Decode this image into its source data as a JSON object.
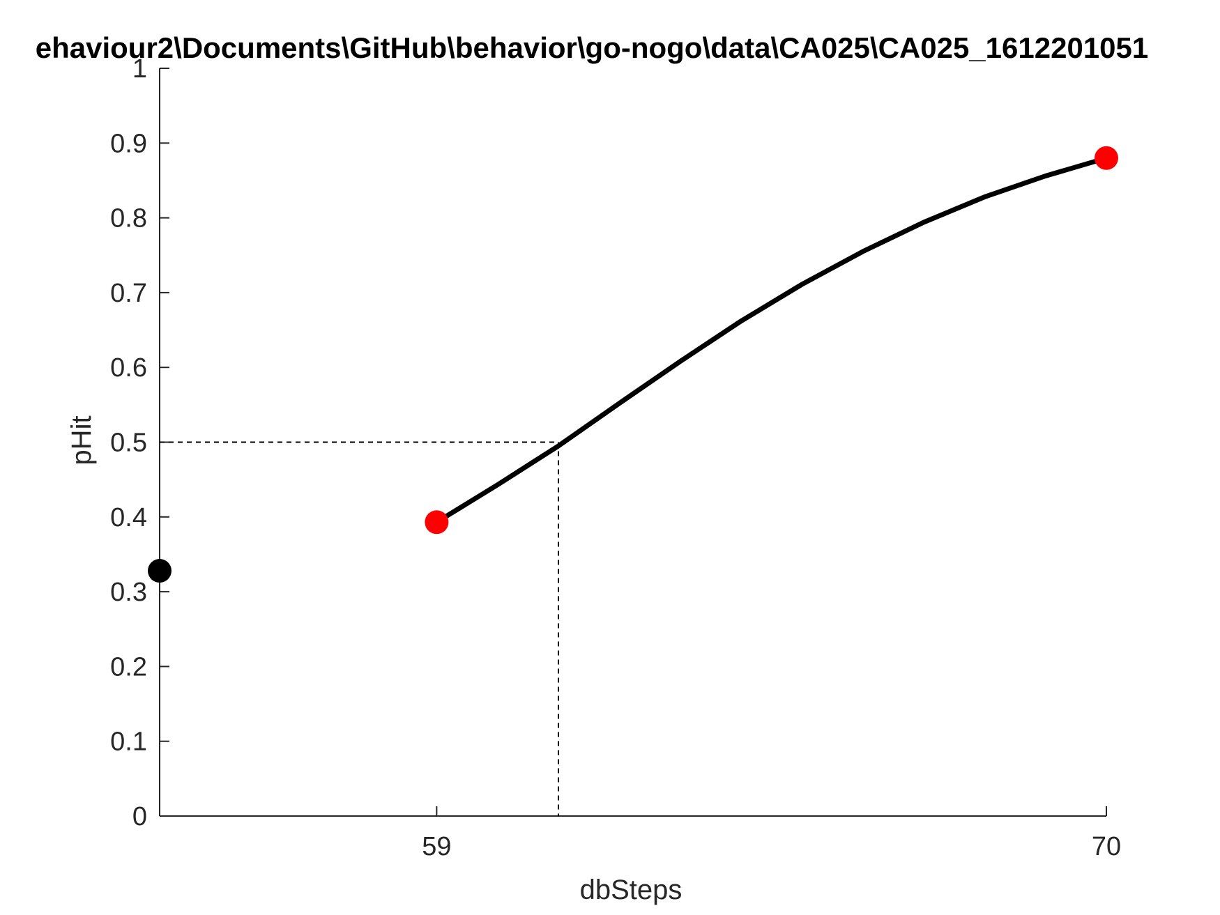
{
  "chart_data": {
    "type": "line",
    "title": "ehaviour2\\Documents\\GitHub\\behavior\\go-nogo\\data\\CA025\\CA025_1612201051",
    "xlabel": "dbSteps",
    "ylabel": "pHit",
    "xlim": [
      54.45,
      70
    ],
    "ylim": [
      0,
      1
    ],
    "x_ticks": [
      59,
      70
    ],
    "x_tick_labels": [
      "59",
      "70"
    ],
    "y_ticks": [
      0,
      0.1,
      0.2,
      0.3,
      0.4,
      0.5,
      0.6,
      0.7,
      0.8,
      0.9,
      1
    ],
    "y_tick_labels": [
      "0",
      "0.1",
      "0.2",
      "0.3",
      "0.4",
      "0.5",
      "0.6",
      "0.7",
      "0.8",
      "0.9",
      "1"
    ],
    "grid": false,
    "series": [
      {
        "kind": "fit-curve",
        "color": "#000000",
        "x": [
          59,
          60,
          61,
          62,
          63,
          64,
          65,
          66,
          67,
          68,
          69,
          70
        ],
        "y": [
          0.393,
          0.443,
          0.495,
          0.552,
          0.608,
          0.662,
          0.711,
          0.755,
          0.794,
          0.828,
          0.856,
          0.88
        ]
      },
      {
        "kind": "points",
        "color": "#ff0000",
        "x": [
          59,
          70
        ],
        "y": [
          0.393,
          0.88
        ]
      },
      {
        "kind": "points",
        "color": "#000000",
        "x": [
          54.45
        ],
        "y": [
          0.328
        ]
      }
    ],
    "threshold": {
      "x": 61,
      "y": 0.5,
      "style": "dashed"
    }
  }
}
